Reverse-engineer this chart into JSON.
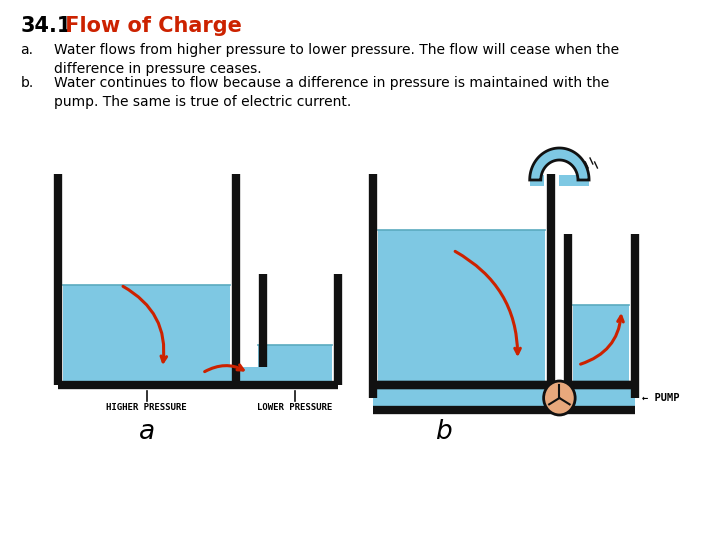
{
  "title_num": "34.1",
  "title_text": " Flow of Charge",
  "title_num_color": "#000000",
  "title_text_color": "#cc2200",
  "bg_color": "#ffffff",
  "text_a_label": "a.",
  "text_b_label": "b.",
  "text_a": "Water flows from higher pressure to lower pressure. The flow will cease when the\ndifference in pressure ceases.",
  "text_b": "Water continues to flow because a difference in pressure is maintained with the\npump. The same is true of electric current.",
  "water_color": "#7ec8e3",
  "outline_color": "#111111",
  "arrow_color": "#cc2200",
  "pump_color": "#e8a87c",
  "diagram_label_a": "a",
  "diagram_label_b": "b",
  "higher_pressure": "HIGHER PRESSURE",
  "lower_pressure": "LOWER PRESSURE",
  "pump_label": "← PUMP"
}
